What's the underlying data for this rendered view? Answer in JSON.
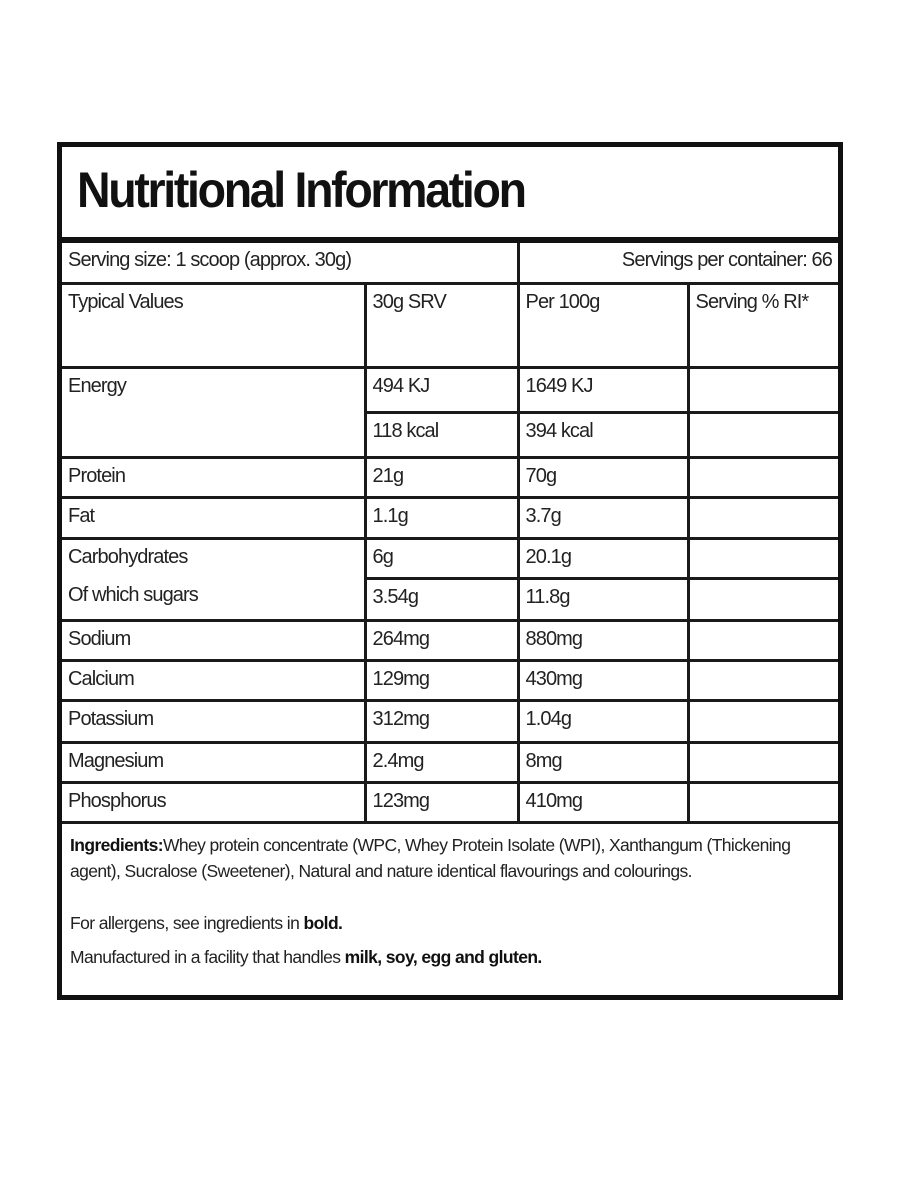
{
  "title": "Nutritional Information",
  "serving": {
    "size": "Serving size: 1 scoop (approx. 30g)",
    "per_container": "Servings per container: 66"
  },
  "columns": [
    "Typical Values",
    "30g SRV",
    "Per 100g",
    "Serving % RI*"
  ],
  "rows": [
    {
      "label": "Energy",
      "srv": "494 KJ",
      "per100": "1649 KJ",
      "ri": ""
    },
    {
      "label": "",
      "srv": "118 kcal",
      "per100": "394 kcal",
      "ri": ""
    },
    {
      "label": "Protein",
      "srv": "21g",
      "per100": "70g",
      "ri": ""
    },
    {
      "label": "Fat",
      "srv": "1.1g",
      "per100": "3.7g",
      "ri": ""
    },
    {
      "label": "Carbohydrates",
      "srv": "6g",
      "per100": "20.1g",
      "ri": ""
    },
    {
      "label": "Of which sugars",
      "srv": "3.54g",
      "per100": "11.8g",
      "ri": ""
    },
    {
      "label": "Sodium",
      "srv": "264mg",
      "per100": "880mg",
      "ri": ""
    },
    {
      "label": "Calcium",
      "srv": "129mg",
      "per100": "430mg",
      "ri": ""
    },
    {
      "label": "Potassium",
      "srv": "312mg",
      "per100": "1.04g",
      "ri": ""
    },
    {
      "label": "Magnesium",
      "srv": "2.4mg",
      "per100": "8mg",
      "ri": ""
    },
    {
      "label": "Phosphorus",
      "srv": "123mg",
      "per100": "410mg",
      "ri": ""
    }
  ],
  "ingredients": {
    "heading": "Ingredients:",
    "text": "Whey protein concentrate (WPC, Whey Protein Isolate (WPI), Xanthangum (Thickening agent), Sucralose (Sweetener), Natural and nature identical flavourings and colourings.",
    "allergen_text": "For allergens, see ingredients in ",
    "allergen_bold": "bold.",
    "facility_text": "Manufactured in a facility that handles ",
    "facility_bold": "milk, soy, egg and gluten."
  }
}
